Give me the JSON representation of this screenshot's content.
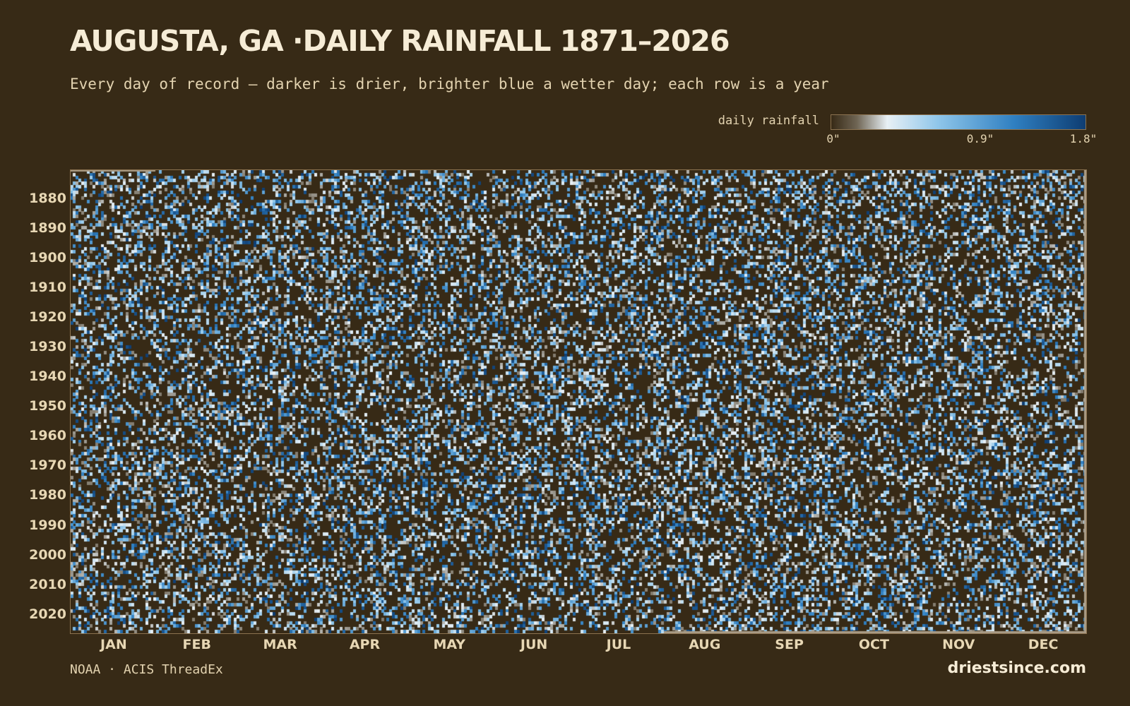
{
  "header": {
    "title": "AUGUSTA, GA ·DAILY RAINFALL 1871–2026",
    "subtitle": "Every day of record — darker is drier, brighter blue a wetter day; each row is a year"
  },
  "legend": {
    "title": "daily rainfall",
    "ticks": [
      "0\"",
      "0.9\"",
      "1.8\""
    ],
    "tick_values": [
      0,
      0.9,
      1.8
    ],
    "color_stops": [
      "#372a16",
      "#6e6453",
      "#e8f0f5",
      "#8fc6ea",
      "#2f7fc1",
      "#0e3d72"
    ]
  },
  "footer": {
    "source": "NOAA · ACIS ThreadEx",
    "brand": "driestsince.com"
  },
  "colors": {
    "background": "#372a16",
    "text": "#e3d3b0",
    "frame": "#8c7350"
  },
  "chart_data": {
    "type": "heatmap",
    "title": "AUGUSTA, GA ·DAILY RAINFALL 1871–2026",
    "x_axis": "day of year",
    "y_axis": "year",
    "year_range": [
      1871,
      2026
    ],
    "day_range": [
      1,
      366
    ],
    "value_range": [
      0,
      1.8
    ],
    "value_unit": "in",
    "x_tick_labels": [
      "JAN",
      "FEB",
      "MAR",
      "APR",
      "MAY",
      "JUN",
      "JUL",
      "AUG",
      "SEP",
      "OCT",
      "NOV",
      "DEC"
    ],
    "y_tick_labels": [
      "1880",
      "1890",
      "1900",
      "1910",
      "1920",
      "1930",
      "1940",
      "1950",
      "1960",
      "1970",
      "1980",
      "1990",
      "2000",
      "2010",
      "2020"
    ],
    "legend_title": "daily rainfall",
    "rain_day_fraction": 0.33
  }
}
